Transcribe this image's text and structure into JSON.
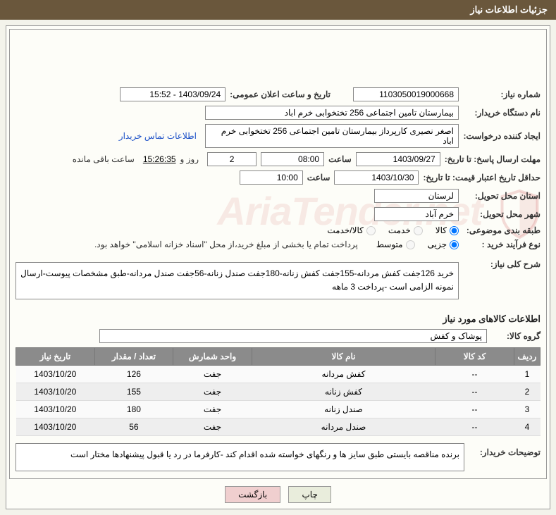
{
  "header": {
    "title": "جزئیات اطلاعات نیاز"
  },
  "fields": {
    "need_number_label": "شماره نیاز:",
    "need_number": "1103050019000668",
    "announce_label": "تاریخ و ساعت اعلان عمومی:",
    "announce_value": "1403/09/24 - 15:52",
    "device_label": "نام دستگاه خریدار:",
    "device_value": "بیمارستان تامین اجتماعی  256 تختخوابی خرم اباد",
    "creator_label": "ایجاد کننده درخواست:",
    "creator_value": "اصغر نصیری کارپرداز بیمارستان تامین اجتماعی  256 تختخوابی خرم اباد",
    "contact_link": "اطلاعات تماس خریدار",
    "deadline_label": "مهلت ارسال پاسخ: تا تاریخ:",
    "deadline_date": "1403/09/27",
    "time_label": "ساعت",
    "deadline_time": "08:00",
    "days_value": "2",
    "days_suffix": "روز و",
    "remaining_time": "15:26:35",
    "remaining_suffix": "ساعت باقی مانده",
    "validity_label": "حداقل تاریخ اعتبار قیمت: تا تاریخ:",
    "validity_date": "1403/10/30",
    "validity_time": "10:00",
    "province_label": "استان محل تحویل:",
    "province_value": "لرستان",
    "city_label": "شهر محل تحویل:",
    "city_value": "خرم آباد",
    "category_label": "طبقه بندی موضوعی:",
    "cat_kala": "کالا",
    "cat_khadamat": "خدمت",
    "cat_both": "کالا/خدمت",
    "process_label": "نوع فرآیند خرید :",
    "proc_small": "جزیی",
    "proc_medium": "متوسط",
    "payment_note": "پرداخت تمام یا بخشی از مبلغ خرید،از محل \"اسناد خزانه اسلامی\" خواهد بود.",
    "desc_label": "شرح کلی نیاز:",
    "desc_text": "خرید 126جفت کفش مردانه-155جفت کفش زنانه-180جفت صندل زنانه-56جفت صندل مردانه-طبق مشخصات پیوست-ارسال نمونه الزامی است -پرداخت 3 ماهه",
    "items_title": "اطلاعات کالاهای مورد نیاز",
    "group_label": "گروه کالا:",
    "group_value": "پوشاک و کفش",
    "buyer_desc_label": "توضیحات خریدار:",
    "buyer_desc_text": "برنده مناقصه بایستی طبق سایز ها و رنگهای خواسته شده اقدام کند -کارفرما در رد یا قبول پیشنهادها مختار است"
  },
  "table": {
    "columns": [
      "ردیف",
      "کد کالا",
      "نام کالا",
      "واحد شمارش",
      "تعداد / مقدار",
      "تاریخ نیاز"
    ],
    "rows": [
      [
        "1",
        "--",
        "کفش مردانه",
        "جفت",
        "126",
        "1403/10/20"
      ],
      [
        "2",
        "--",
        "کفش زنانه",
        "جفت",
        "155",
        "1403/10/20"
      ],
      [
        "3",
        "--",
        "صندل زنانه",
        "جفت",
        "180",
        "1403/10/20"
      ],
      [
        "4",
        "--",
        "صندل مردانه",
        "جفت",
        "56",
        "1403/10/20"
      ]
    ]
  },
  "buttons": {
    "print": "چاپ",
    "back": "بازگشت"
  },
  "watermark": "AriaTender.net"
}
